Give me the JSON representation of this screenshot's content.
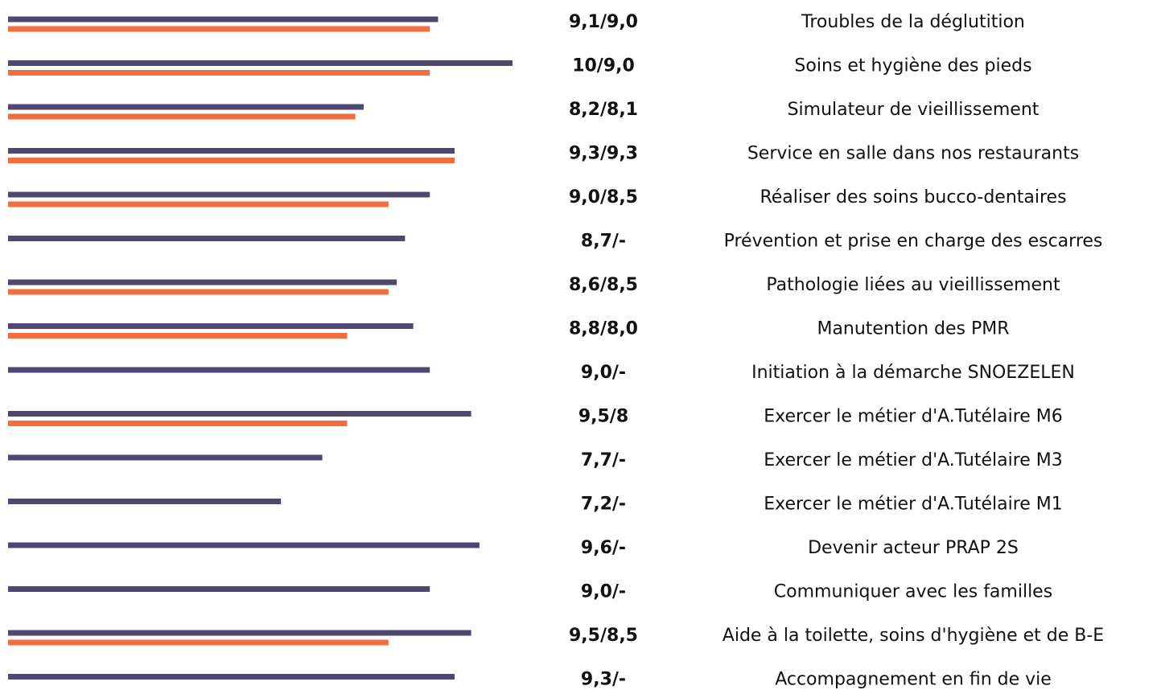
{
  "chart_data": {
    "type": "hbar",
    "categories": [
      "Troubles de la déglutition",
      "Soins et hygiène des pieds",
      "Simulateur de vieillissement",
      "Service en salle dans nos restaurants",
      "Réaliser des soins bucco-dentaires",
      "Prévention et prise en charge des escarres",
      "Pathologie liées au vieillissement",
      "Manutention des PMR",
      "Initiation à la démarche SNOEZELEN",
      "Exercer le métier d'A.Tutélaire M6",
      "Exercer le métier d'A.Tutélaire M3",
      "Exercer le métier d'A.Tutélaire M1",
      "Devenir acteur PRAP 2S",
      "Communiquer avec les familles",
      "Aide à la toilette, soins d'hygiène et de B-E",
      "Accompagnement en fin de vie"
    ],
    "series": [
      {
        "color": "#4f4672",
        "values": [
          9.1,
          10,
          8.2,
          9.3,
          9.0,
          8.7,
          8.6,
          8.8,
          9.0,
          9.5,
          7.7,
          7.2,
          9.6,
          9.0,
          9.5,
          9.3
        ]
      },
      {
        "color": "#f26c3f",
        "values": [
          9.0,
          9.0,
          8.1,
          9.3,
          8.5,
          null,
          8.5,
          8.0,
          null,
          8,
          null,
          null,
          null,
          null,
          8.5,
          null
        ]
      }
    ],
    "value_labels": [
      "9,1/9,0",
      "10/9,0",
      "8,2/8,1",
      "9,3/9,3",
      "9,0/8,5",
      "8,7/-",
      "8,6/8,5",
      "8,8/8,0",
      "9,0/-",
      "9,5/8",
      "7,7/-",
      "7,2/-",
      "9,6/-",
      "9,0/-",
      "9,5/8,5",
      "9,3/-"
    ],
    "xlim": [
      3.9,
      10
    ]
  }
}
